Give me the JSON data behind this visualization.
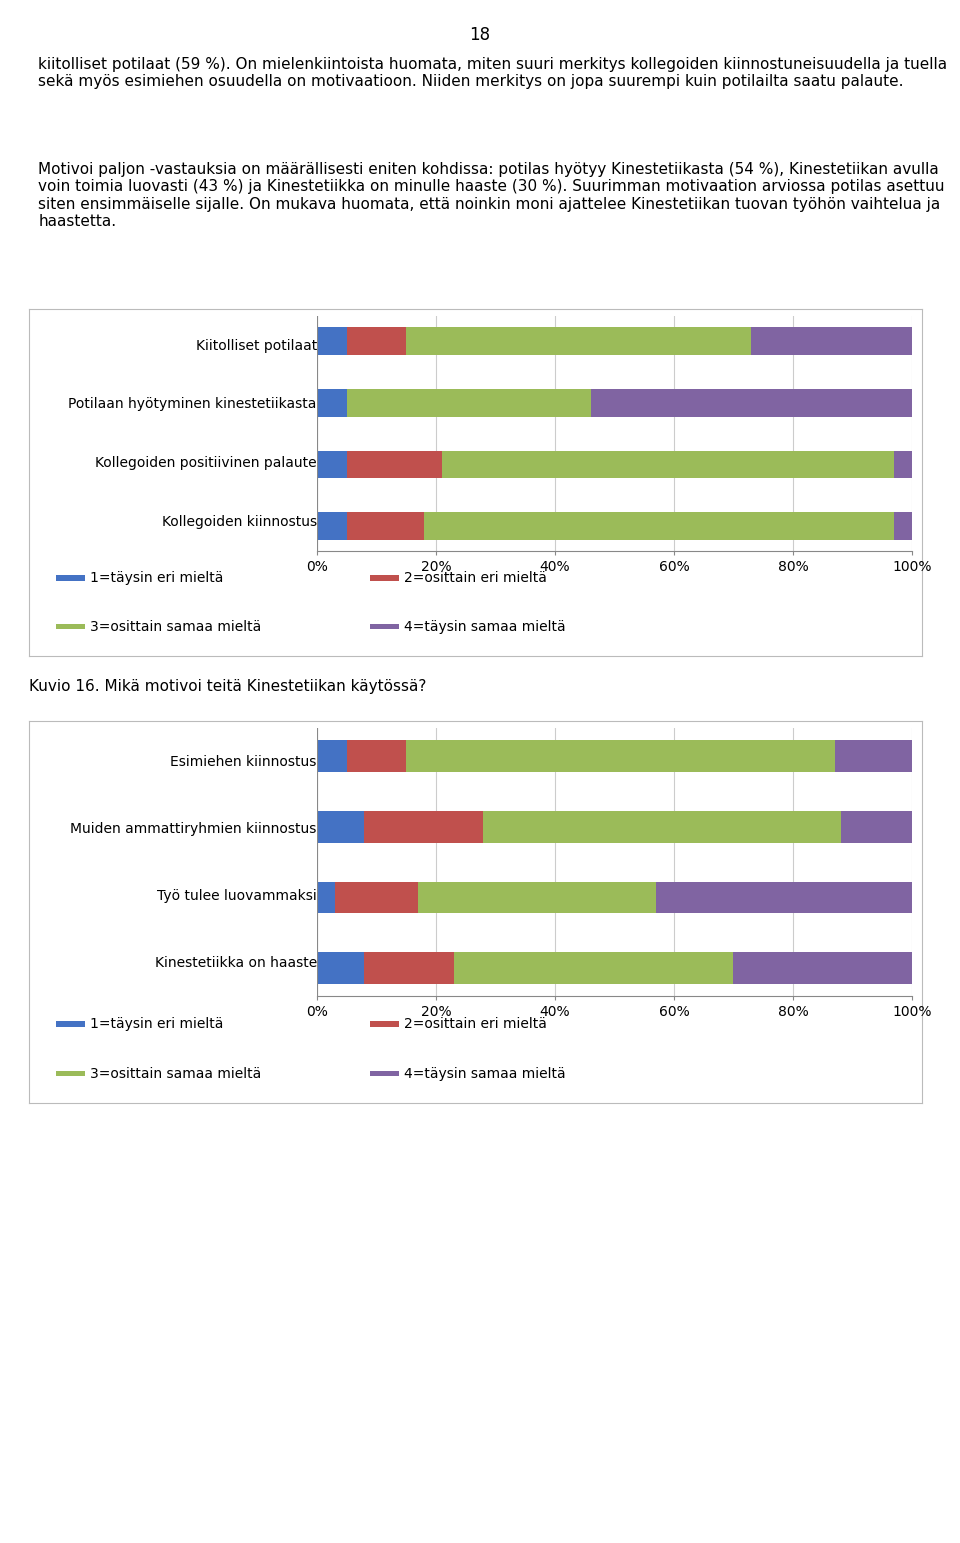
{
  "page_number": "18",
  "text_block1": "kiitolliset potilaat (59 %). On mielenkiintoista huomata, miten suuri merkitys kollegoiden kiinnostuneisuudella ja tuella sekä myös esimiehen osuudella on motivaatioon. Niiden merkitys on jopa suurempi kuin potilailta saatu palaute.",
  "text_block2": "Motivoi paljon -vastauksia on määrällisesti eniten kohdissa: potilas hyötyy Kinestetiikasta (54 %), Kinestetiikan avulla voin toimia luovasti (43 %) ja Kinestetiikka on minulle haaste (30 %). Suurimman motivaation arviossa potilas asettuu siten ensimmäiselle sijalle. On mukava huomata, että noinkin moni ajattelee Kinestetiikan tuovan työhön vaihtelua ja haastetta.",
  "caption2": "Kuvio 16. Mikä motivoi teitä Kinestetiikan käytössä?",
  "chart1": {
    "categories": [
      "Kiitolliset potilaat",
      "Potilaan hyötyminen kinestetiikasta",
      "Kollegoiden positiivinen palaute",
      "Kollegoiden kiinnostus"
    ],
    "series": [
      {
        "label": "1=täysin eri mieltä",
        "color": "#4472C4",
        "values": [
          5,
          5,
          5,
          5
        ]
      },
      {
        "label": "2=osittain eri mieltä",
        "color": "#C0504D",
        "values": [
          10,
          0,
          16,
          13
        ]
      },
      {
        "label": "3=osittain samaa mieltä",
        "color": "#9BBB59",
        "values": [
          58,
          41,
          76,
          79
        ]
      },
      {
        "label": "4=täysin samaa mieltä",
        "color": "#8064A2",
        "values": [
          27,
          54,
          3,
          3
        ]
      }
    ]
  },
  "chart2": {
    "categories": [
      "Esimiehen kiinnostus",
      "Muiden ammattiryhmien kiinnostus",
      "Työ tulee luovammaksi",
      "Kinestetiikka on haaste"
    ],
    "series": [
      {
        "label": "1=täysin eri mieltä",
        "color": "#4472C4",
        "values": [
          5,
          8,
          3,
          8
        ]
      },
      {
        "label": "2=osittain eri mieltä",
        "color": "#C0504D",
        "values": [
          10,
          20,
          14,
          15
        ]
      },
      {
        "label": "3=osittain samaa mieltä",
        "color": "#9BBB59",
        "values": [
          72,
          60,
          40,
          47
        ]
      },
      {
        "label": "4=täysin samaa mieltä",
        "color": "#8064A2",
        "values": [
          13,
          12,
          43,
          30
        ]
      }
    ]
  },
  "legend_labels": [
    "1=täysin eri mieltä",
    "2=osittain eri mieltä",
    "3=osittain samaa mieltä",
    "4=täysin samaa mieltä"
  ],
  "legend_colors": [
    "#4472C4",
    "#C0504D",
    "#9BBB59",
    "#8064A2"
  ],
  "font_size_text": 11,
  "font_size_axis": 10,
  "font_size_caption": 11,
  "font_size_legend": 10,
  "font_size_page": 12
}
